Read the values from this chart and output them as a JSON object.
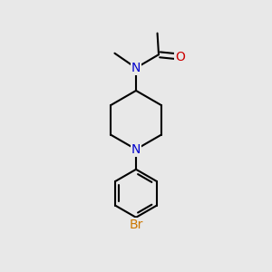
{
  "background_color": "#E8E8E8",
  "bond_color": "#000000",
  "N_color": "#0000CC",
  "O_color": "#CC0000",
  "Br_color": "#CC7700",
  "bond_width": 1.5,
  "font_size_atom": 10,
  "fig_width": 3.0,
  "fig_height": 3.0,
  "dpi": 100,
  "xlim": [
    0,
    10
  ],
  "ylim": [
    0,
    10
  ]
}
